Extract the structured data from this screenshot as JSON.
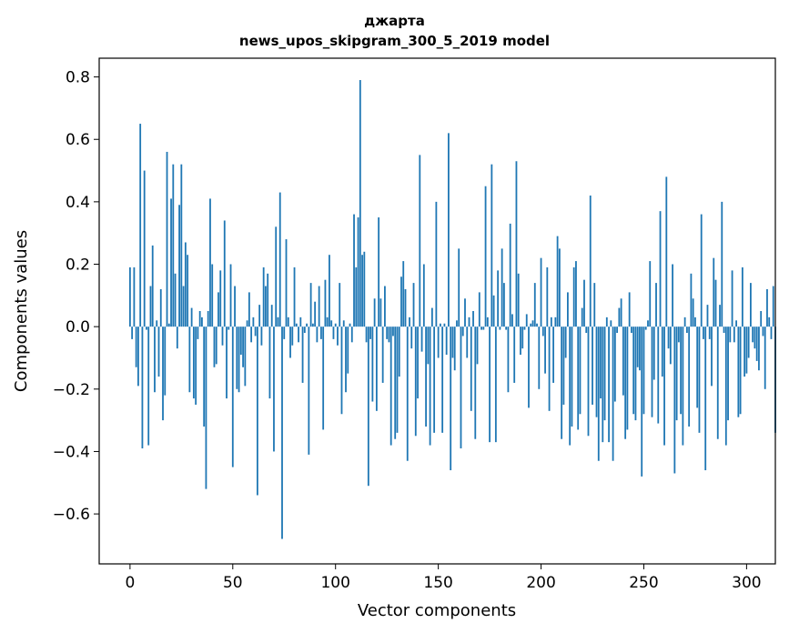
{
  "chart_data": {
    "type": "bar",
    "title": "джарта",
    "subtitle": "news_upos_skipgram_300_5_2019 model",
    "xlabel": "Vector components",
    "ylabel": "Components values",
    "xlim": [
      -15,
      314
    ],
    "ylim": [
      -0.76,
      0.86
    ],
    "xticks": [
      0,
      50,
      100,
      150,
      200,
      250,
      300
    ],
    "yticks": [
      -0.6,
      -0.4,
      -0.2,
      0.0,
      0.2,
      0.4,
      0.6,
      0.8
    ],
    "xtick_labels": [
      "0",
      "50",
      "100",
      "150",
      "200",
      "250",
      "300"
    ],
    "ytick_labels": [
      "−0.6",
      "−0.4",
      "−0.2",
      "0.0",
      "0.2",
      "0.4",
      "0.6",
      "0.8"
    ],
    "grid": false,
    "bar_color": "#1f77b4",
    "values": [
      0.19,
      -0.04,
      0.19,
      -0.13,
      -0.19,
      0.65,
      -0.39,
      0.5,
      -0.01,
      -0.38,
      0.13,
      0.26,
      -0.21,
      0.02,
      -0.16,
      0.12,
      -0.3,
      -0.22,
      0.56,
      0.01,
      0.41,
      0.52,
      0.17,
      -0.07,
      0.39,
      0.52,
      0.13,
      0.27,
      0.23,
      -0.21,
      0.06,
      -0.23,
      -0.25,
      -0.04,
      0.05,
      0.03,
      -0.32,
      -0.52,
      0.05,
      0.41,
      0.2,
      -0.13,
      -0.12,
      0.11,
      0.18,
      -0.06,
      0.34,
      -0.23,
      -0.01,
      0.2,
      -0.45,
      0.13,
      -0.2,
      -0.21,
      -0.09,
      -0.13,
      -0.19,
      0.02,
      0.11,
      -0.05,
      0.03,
      -0.03,
      -0.54,
      0.07,
      -0.06,
      0.19,
      0.13,
      0.17,
      -0.23,
      0.07,
      -0.4,
      0.32,
      0.03,
      0.43,
      -0.68,
      -0.04,
      0.28,
      0.03,
      -0.1,
      -0.06,
      0.19,
      0.01,
      -0.05,
      0.03,
      -0.18,
      -0.02,
      0.01,
      -0.41,
      0.14,
      0.01,
      0.08,
      -0.05,
      0.13,
      -0.04,
      -0.33,
      0.15,
      0.03,
      0.23,
      0.02,
      -0.04,
      0.01,
      -0.06,
      0.14,
      -0.28,
      0.02,
      -0.21,
      -0.15,
      0.01,
      -0.05,
      0.36,
      0.19,
      0.35,
      0.79,
      0.23,
      0.24,
      -0.05,
      -0.51,
      -0.04,
      -0.24,
      0.09,
      -0.27,
      0.35,
      0.09,
      -0.18,
      0.13,
      -0.04,
      -0.05,
      -0.38,
      -0.03,
      -0.36,
      -0.34,
      -0.16,
      0.16,
      0.21,
      0.12,
      -0.43,
      0.03,
      -0.07,
      0.14,
      -0.35,
      -0.23,
      0.55,
      -0.08,
      0.2,
      -0.32,
      -0.12,
      -0.38,
      0.06,
      -0.34,
      0.4,
      -0.1,
      0.01,
      -0.34,
      0.01,
      -0.09,
      0.62,
      -0.46,
      -0.1,
      -0.14,
      0.02,
      0.25,
      -0.39,
      -0.03,
      0.09,
      -0.1,
      0.03,
      -0.27,
      0.05,
      -0.36,
      -0.12,
      0.11,
      -0.01,
      -0.01,
      0.45,
      0.03,
      -0.37,
      0.52,
      0.1,
      -0.37,
      0.18,
      -0.01,
      0.25,
      0.14,
      -0.01,
      -0.21,
      0.33,
      0.04,
      -0.18,
      0.53,
      0.17,
      -0.09,
      -0.07,
      -0.01,
      0.04,
      -0.26,
      0.01,
      0.02,
      0.14,
      0.01,
      -0.2,
      0.22,
      -0.03,
      -0.15,
      0.19,
      -0.27,
      0.03,
      -0.18,
      0.03,
      0.29,
      0.25,
      -0.36,
      -0.25,
      -0.1,
      0.11,
      -0.38,
      -0.32,
      0.19,
      0.21,
      -0.33,
      -0.28,
      0.06,
      0.15,
      -0.02,
      -0.35,
      0.42,
      -0.25,
      0.14,
      -0.29,
      -0.43,
      -0.23,
      -0.37,
      -0.3,
      0.03,
      -0.37,
      0.02,
      -0.43,
      -0.24,
      -0.02,
      0.06,
      0.09,
      -0.22,
      -0.36,
      -0.33,
      0.11,
      -0.02,
      -0.28,
      -0.3,
      -0.13,
      -0.14,
      -0.48,
      -0.28,
      -0.01,
      0.02,
      0.21,
      -0.29,
      -0.17,
      0.14,
      -0.31,
      0.37,
      -0.16,
      -0.38,
      0.48,
      -0.07,
      -0.12,
      0.2,
      -0.47,
      -0.3,
      -0.05,
      -0.28,
      -0.38,
      0.03,
      -0.02,
      -0.32,
      0.17,
      0.09,
      0.03,
      -0.26,
      -0.34,
      0.36,
      -0.04,
      -0.46,
      0.07,
      -0.04,
      -0.19,
      0.22,
      0.15,
      -0.36,
      0.07,
      0.4,
      -0.02,
      -0.38,
      -0.3,
      -0.05,
      0.18,
      -0.05,
      0.02,
      -0.29,
      -0.28,
      0.19,
      -0.16,
      -0.15,
      -0.1,
      0.14,
      -0.05,
      -0.07,
      -0.11,
      -0.14,
      0.05,
      -0.03,
      -0.2,
      0.12,
      0.03,
      -0.04,
      0.13,
      -0.34
    ]
  }
}
